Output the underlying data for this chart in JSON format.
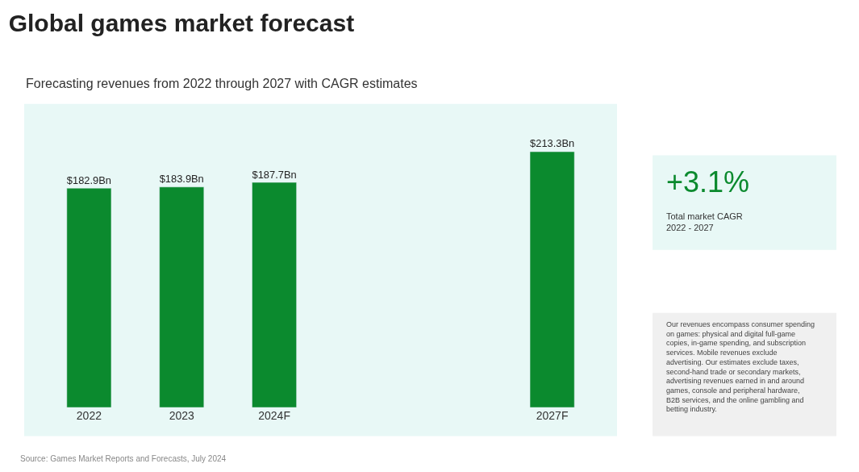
{
  "chart_data": {
    "type": "bar",
    "title": "Global games market forecast",
    "subtitle": "Forecasting revenues from 2022 through 2027 with CAGR estimates",
    "categories": [
      "2022",
      "2023",
      "2024F",
      null,
      null,
      "2027F"
    ],
    "values": [
      182.9,
      183.9,
      187.7,
      null,
      null,
      213.3
    ],
    "color": "#0b8a2e",
    "value_labels": [
      "$182.9Bn",
      "$183.9Bn",
      "$187.7Bn",
      null,
      null,
      "$213.3Bn"
    ],
    "annotations": [
      "+3.1%",
      "Total market CAGR\n2022 - 2027",
      "Our revenues encompass consumer spending on games: physical and digital full-game copies, in-game spending, and subscription services. Mobile revenues exclude advertising. Our estimates exclude taxes, second-hand trade or secondary markets, advertising revenues earned in and around games, console and peripheral hardware, B2B services, and the online gambling and betting industry.",
      "Source: Games Market Reports and Forecasts, July 2024"
    ],
    "grid": false,
    "legend": false
  }
}
